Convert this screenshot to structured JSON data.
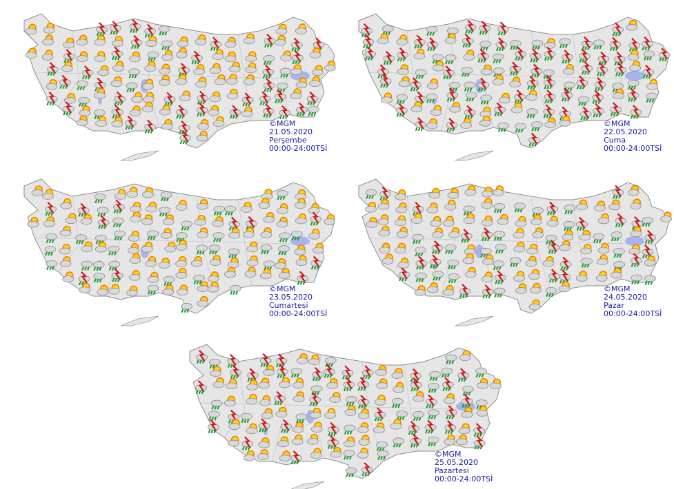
{
  "maps": [
    {
      "copyright": "©MGM",
      "date": "21.05.2020",
      "day": "Perşembe",
      "hours": "00:00-24:00TSİ"
    },
    {
      "copyright": "©MGM",
      "date": "22.05.2020",
      "day": "Cuma",
      "hours": "00:00-24:00TSİ"
    },
    {
      "copyright": "©MGM",
      "date": "23.05.2020",
      "day": "Cumartesi",
      "hours": "00:00-24:00TSİ"
    },
    {
      "copyright": "©MGM",
      "date": "24.05.2020",
      "day": "Pazar",
      "hours": "00:00-24:00TSİ"
    },
    {
      "copyright": "©MGM",
      "date": "25.05.2020",
      "day": "Pazartesi",
      "hours": "00:00-24:00TSİ"
    }
  ]
}
